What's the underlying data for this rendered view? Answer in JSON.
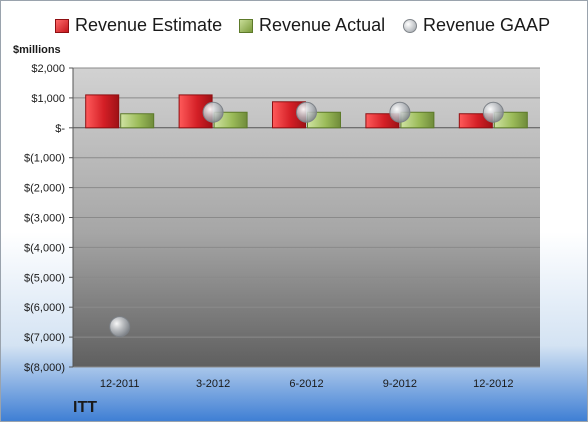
{
  "company": "ITT",
  "legend": {
    "estimate": "Revenue Estimate",
    "actual": "Revenue Actual",
    "gaap": "Revenue GAAP"
  },
  "colors": {
    "estimate": "#d41f26",
    "actual": "#9bbb59",
    "gaap": "#b4b8bd"
  },
  "chart_data": {
    "type": "bar",
    "title": "",
    "xlabel": "",
    "ylabel": "$millions",
    "categories": [
      "12-2011",
      "3-2012",
      "6-2012",
      "9-2012",
      "12-2012"
    ],
    "series": [
      {
        "name": "Revenue Estimate",
        "kind": "bar",
        "values": [
          1100,
          1100,
          870,
          470,
          470
        ]
      },
      {
        "name": "Revenue Actual",
        "kind": "bar",
        "values": [
          470,
          520,
          520,
          520,
          520
        ]
      },
      {
        "name": "Revenue GAAP",
        "kind": "scatter",
        "values": [
          -6650,
          520,
          520,
          520,
          520
        ]
      }
    ],
    "ylim": [
      -8000,
      2000
    ],
    "yticks": [
      2000,
      1000,
      0,
      -1000,
      -2000,
      -3000,
      -4000,
      -5000,
      -6000,
      -7000,
      -8000
    ],
    "ytick_labels": [
      "$2,000",
      "$1,000",
      "$-",
      "$(1,000)",
      "$(2,000)",
      "$(3,000)",
      "$(4,000)",
      "$(5,000)",
      "$(6,000)",
      "$(7,000)",
      "$(8,000)"
    ],
    "grid": true,
    "legend_position": "top"
  }
}
